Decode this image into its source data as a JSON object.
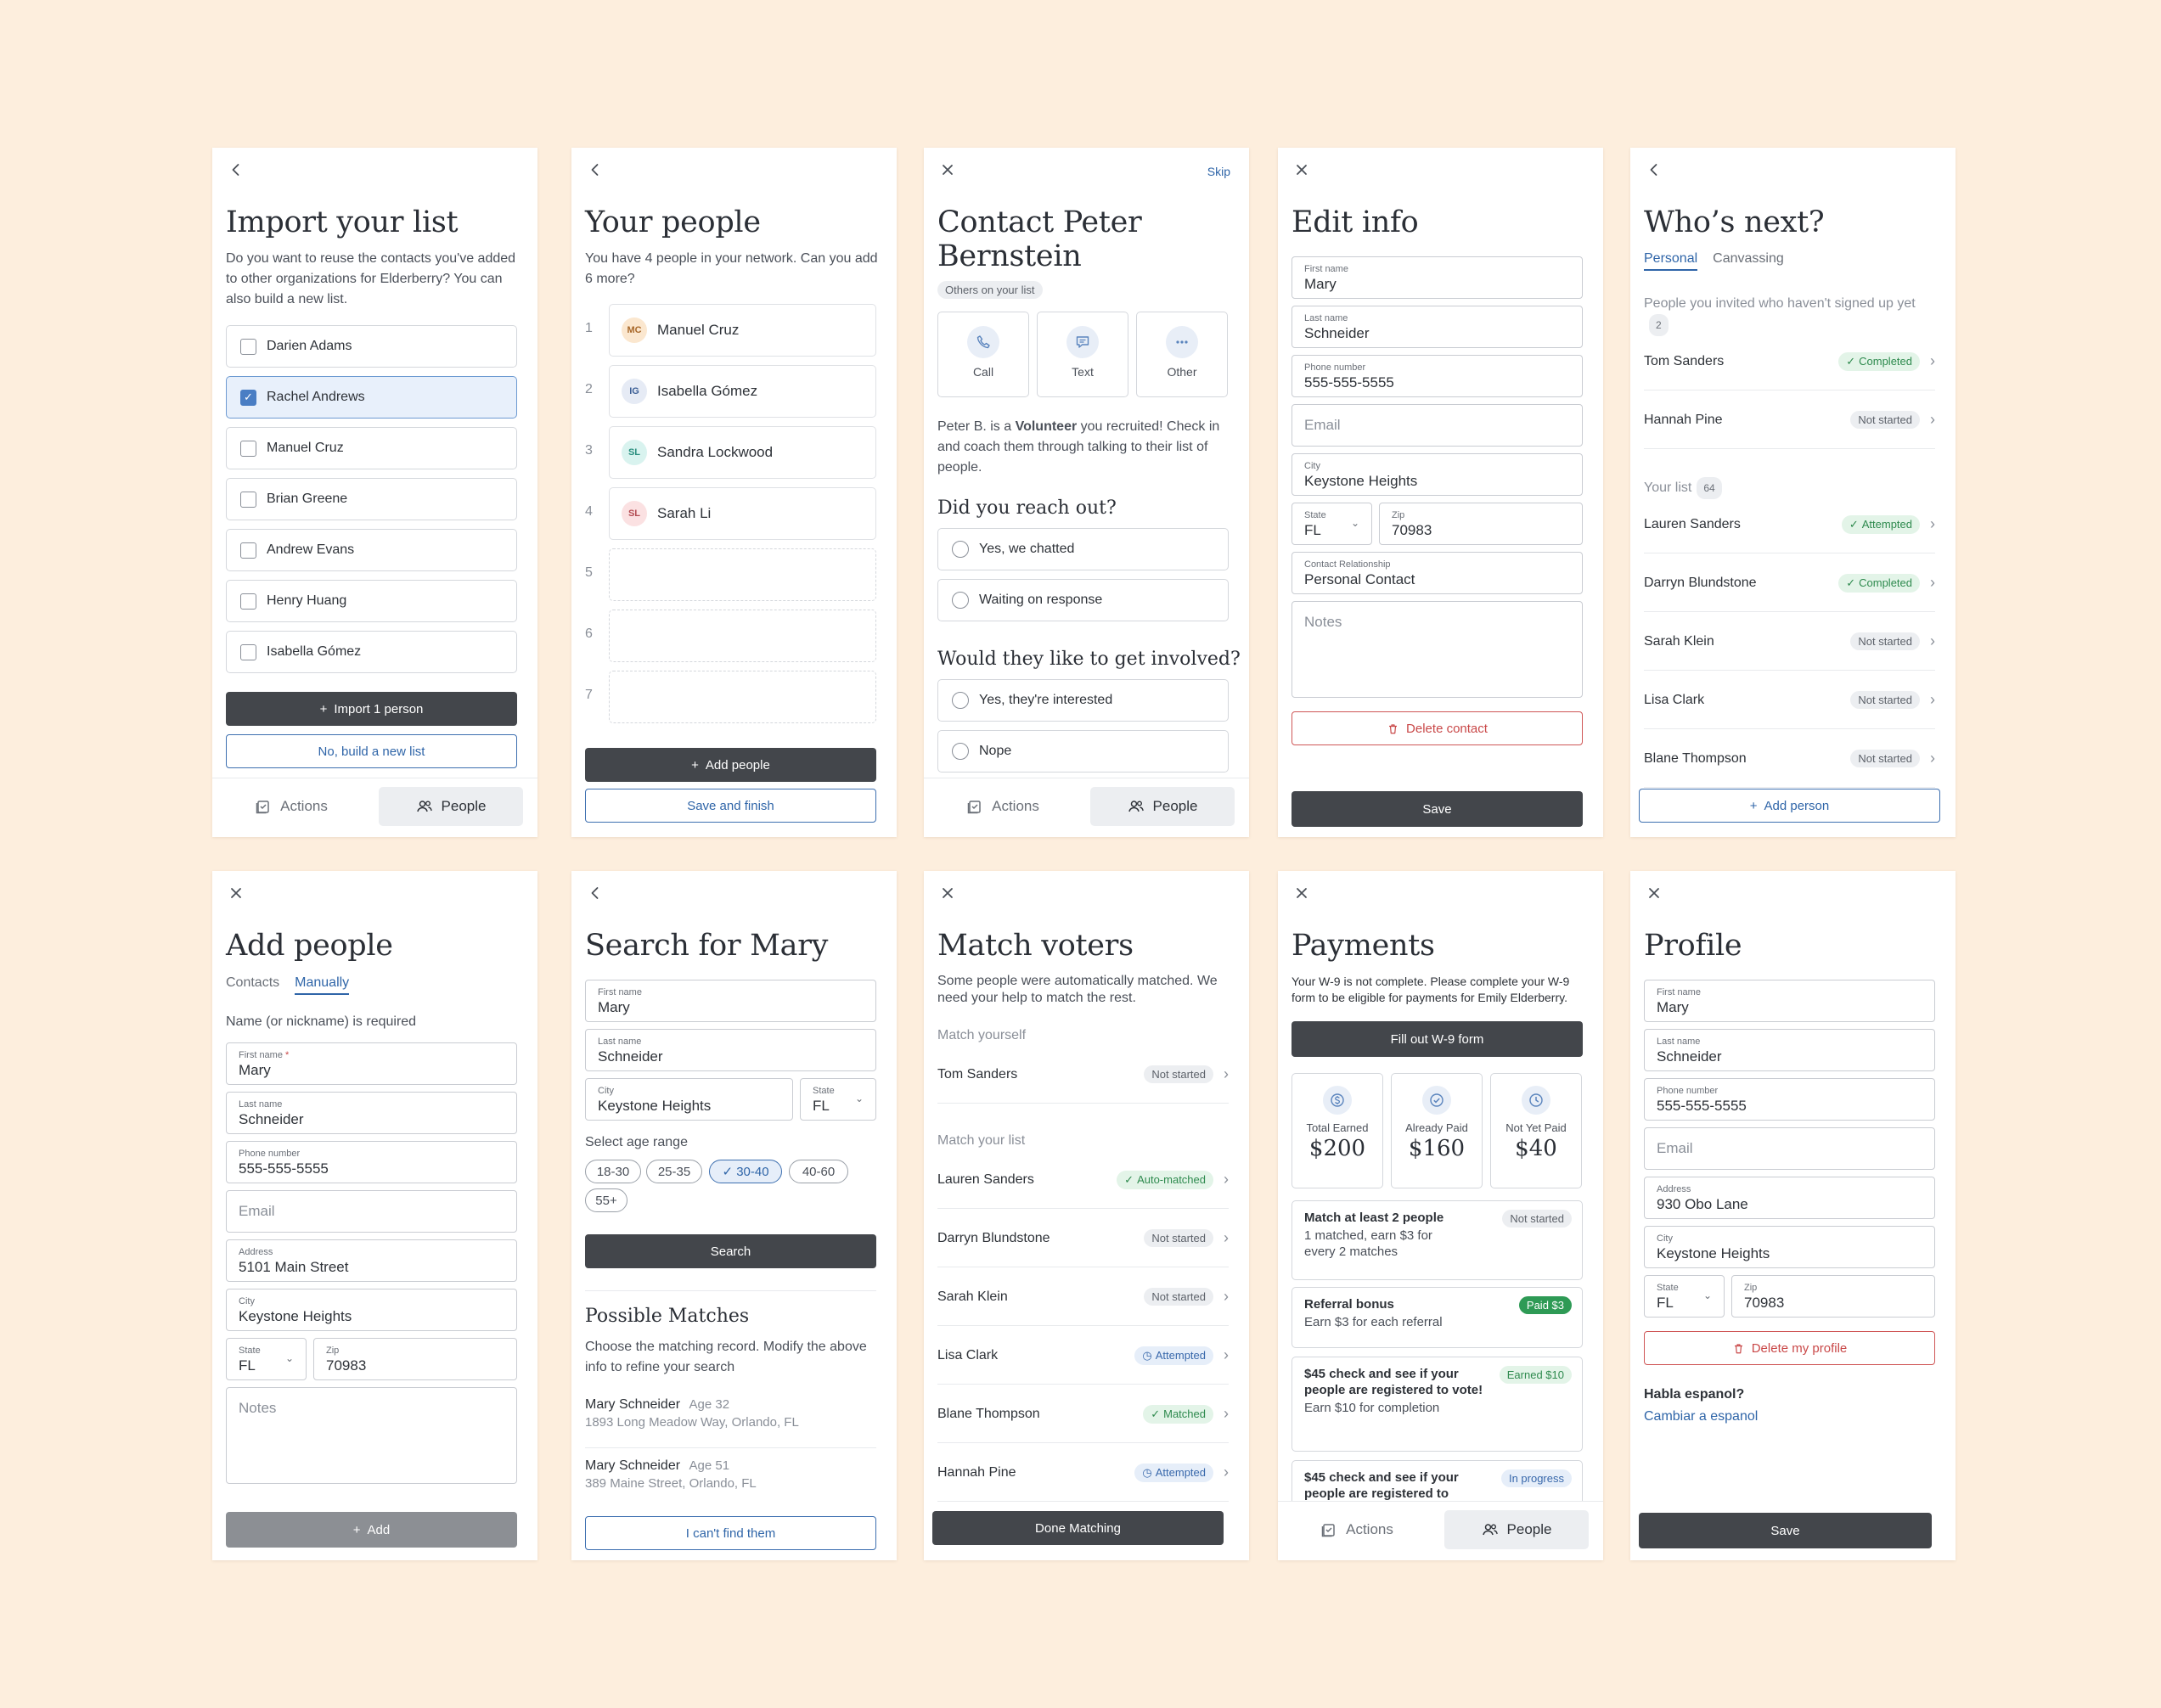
{
  "icons": {
    "back": "chevron-left-icon",
    "close": "close-icon",
    "actions": "checklist-icon",
    "people": "people-icon"
  },
  "nav": {
    "actions": "Actions",
    "people": "People"
  },
  "s1": {
    "title": "Import your list",
    "desc": "Do you want to reuse the contacts you've added to other organizations for Elderberry? You can also build a new list.",
    "contacts": [
      "Darien Adams",
      "Rachel Andrews",
      "Manuel Cruz",
      "Brian Greene",
      "Andrew Evans",
      "Henry Huang",
      "Isabella Gómez"
    ],
    "import_btn": "Import 1 person",
    "build_btn": "No, build a new list"
  },
  "s2": {
    "title": "Your people",
    "desc": "You have 4 people in your network. Can you add 6 more?",
    "people": [
      {
        "n": "1",
        "init": "MC",
        "name": "Manuel Cruz"
      },
      {
        "n": "2",
        "init": "IG",
        "name": "Isabella Gómez"
      },
      {
        "n": "3",
        "init": "SL",
        "name": "Sandra Lockwood"
      },
      {
        "n": "4",
        "init": "SL",
        "name": "Sarah Li"
      }
    ],
    "empty": [
      "5",
      "6",
      "7"
    ],
    "add_btn": "Add people",
    "save_btn": "Save and finish"
  },
  "s3": {
    "skip": "Skip",
    "title1": "Contact Peter",
    "title2": "Bernstein",
    "tag": "Others on your list",
    "call": "Call",
    "text": "Text",
    "other": "Other",
    "desc_a": "Peter B. is a ",
    "desc_b": "Volunteer",
    "desc_c": " you recruited! Check in and coach them through talking to their list of people.",
    "q1": "Did you reach out?",
    "q1a": "Yes, we chatted",
    "q1b": "Waiting on response",
    "q2": "Would they like to get involved?",
    "q2a": "Yes, they're interested",
    "q2b": "Nope"
  },
  "s4": {
    "title": "Edit info",
    "first_l": "First name",
    "first": "Mary",
    "last_l": "Last name",
    "last": "Schneider",
    "phone_l": "Phone number",
    "phone": "555-555-5555",
    "email": "Email",
    "city_l": "City",
    "city": "Keystone Heights",
    "state_l": "State",
    "state": "FL",
    "zip_l": "Zip",
    "zip": "70983",
    "rel_l": "Contact Relationship",
    "rel": "Personal Contact",
    "notes": "Notes",
    "delete": "Delete contact",
    "save": "Save"
  },
  "s5": {
    "title": "Who’s next?",
    "tab1": "Personal",
    "tab2": "Canvassing",
    "invited": "People you invited who haven't signed up yet",
    "invited_count": "2",
    "invited_list": [
      {
        "name": "Tom Sanders",
        "status": "Completed",
        "c": "green"
      },
      {
        "name": "Hannah Pine",
        "status": "Not started",
        "c": "gray"
      }
    ],
    "yourlist": "Your list",
    "yourlist_count": "64",
    "list": [
      {
        "name": "Lauren Sanders",
        "status": "Attempted",
        "c": "green"
      },
      {
        "name": "Darryn Blundstone",
        "status": "Completed",
        "c": "green"
      },
      {
        "name": "Sarah Klein",
        "status": "Not started",
        "c": "gray"
      },
      {
        "name": "Lisa Clark",
        "status": "Not started",
        "c": "gray"
      },
      {
        "name": "Blane Thompson",
        "status": "Not started",
        "c": "gray"
      }
    ],
    "add": "Add person"
  },
  "s6": {
    "title": "Add people",
    "tab1": "Contacts",
    "tab2": "Manually",
    "req": "Name (or nickname) is required",
    "first_l": "First name",
    "first": "Mary",
    "last_l": "Last name",
    "last": "Schneider",
    "phone_l": "Phone number",
    "phone": "555-555-5555",
    "email": "Email",
    "addr_l": "Address",
    "addr": "5101 Main Street",
    "city_l": "City",
    "city": "Keystone Heights",
    "state_l": "State",
    "state": "FL",
    "zip_l": "Zip",
    "zip": "70983",
    "notes": "Notes",
    "add": "Add"
  },
  "s7": {
    "title": "Search for Mary",
    "first_l": "First name",
    "first": "Mary",
    "last_l": "Last name",
    "last": "Schneider",
    "city_l": "City",
    "city": "Keystone Heights",
    "state_l": "State",
    "state": "FL",
    "age": "Select age range",
    "ranges": [
      "18-30",
      "25-35",
      "30-40",
      "40-60",
      "55+"
    ],
    "search": "Search",
    "pm": "Possible Matches",
    "pm_desc": "Choose the matching record. Modify the above info to refine your search",
    "matches": [
      {
        "name": "Mary Schneider",
        "age": "Age 32",
        "addr": "1893 Long Meadow Way, Orlando, FL"
      },
      {
        "name": "Mary Schneider",
        "age": "Age 51",
        "addr": "389 Maine Street, Orlando, FL"
      }
    ],
    "cant": "I can't find them"
  },
  "s8": {
    "title": "Match voters",
    "desc": "Some people were automatically matched. We need your help to match the rest.",
    "yourself": "Match yourself",
    "self": {
      "name": "Tom Sanders",
      "status": "Not started"
    },
    "yourlist": "Match your list",
    "list": [
      {
        "name": "Lauren Sanders",
        "status": "Auto-matched",
        "c": "green"
      },
      {
        "name": "Darryn Blundstone",
        "status": "Not started",
        "c": "gray"
      },
      {
        "name": "Sarah Klein",
        "status": "Not started",
        "c": "gray"
      },
      {
        "name": "Lisa Clark",
        "status": "Attempted",
        "c": "blue"
      },
      {
        "name": "Blane Thompson",
        "status": "Matched",
        "c": "green"
      },
      {
        "name": "Hannah Pine",
        "status": "Attempted",
        "c": "blue"
      }
    ],
    "done": "Done Matching"
  },
  "s9": {
    "title": "Payments",
    "desc": "Your W-9 is not complete. Please complete your W-9 form to be eligible for payments for Emily Elderberry.",
    "w9": "Fill out W-9 form",
    "stats": [
      {
        "l": "Total Earned",
        "v": "$200"
      },
      {
        "l": "Already Paid",
        "v": "$160"
      },
      {
        "l": "Not Yet Paid",
        "v": "$40"
      }
    ],
    "cards": [
      {
        "h": "Match at least 2 people",
        "d": "1 matched, earn $3 for every 2 matches",
        "b": "Not started"
      },
      {
        "h": "Referral bonus",
        "d": "Earn $3 for each referral",
        "b": "Paid $3"
      },
      {
        "h": "$45 check and see if your people are registered to vote!",
        "d": "Earn $10 for completion",
        "b": "Earned $10"
      },
      {
        "h": "$45 check and see if your people are registered to",
        "d": "",
        "b": "In progress"
      }
    ]
  },
  "s10": {
    "title": "Profile",
    "first_l": "First name",
    "first": "Mary",
    "last_l": "Last name",
    "last": "Schneider",
    "phone_l": "Phone number",
    "phone": "555-555-5555",
    "email": "Email",
    "addr_l": "Address",
    "addr": "930 Obo Lane",
    "city_l": "City",
    "city": "Keystone Heights",
    "state_l": "State",
    "state": "FL",
    "zip_l": "Zip",
    "zip": "70983",
    "delete": "Delete my profile",
    "habla": "Habla espanol?",
    "cambiar": "Cambiar a espanol",
    "save": "Save"
  }
}
